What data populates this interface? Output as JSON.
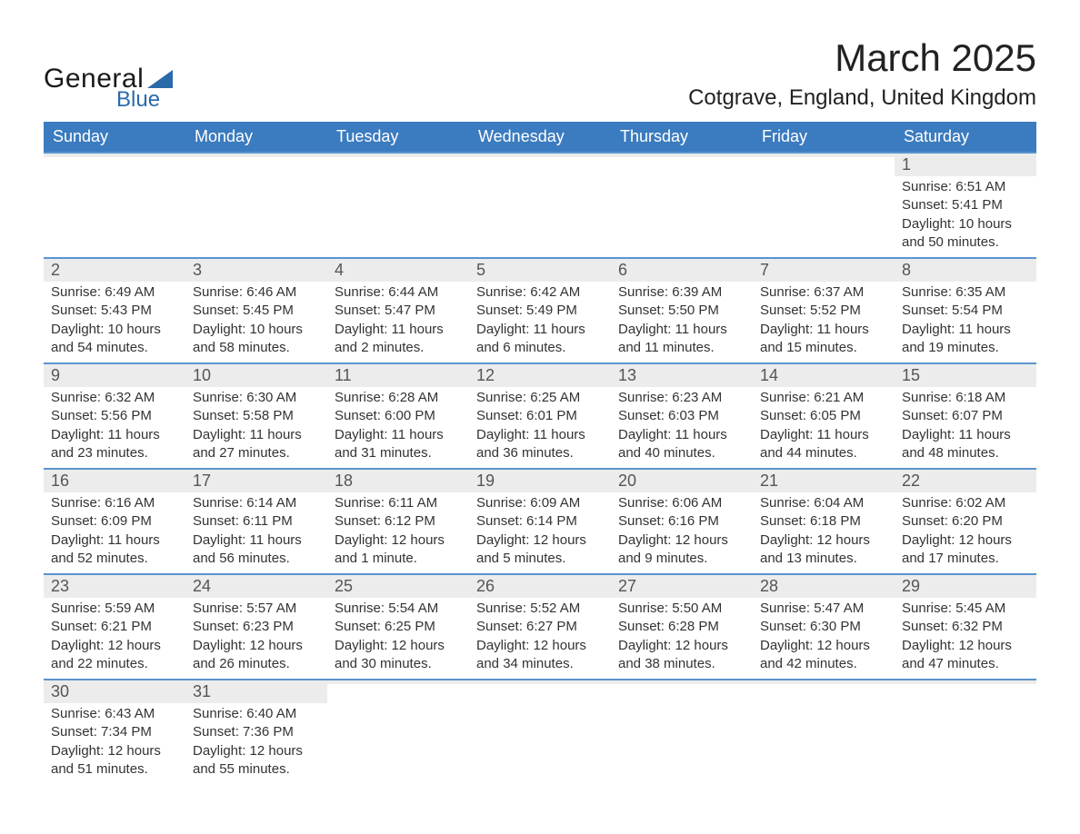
{
  "brand": {
    "top": "General",
    "bottom": "Blue"
  },
  "header": {
    "month_title": "March 2025",
    "location": "Cotgrave, England, United Kingdom"
  },
  "colors": {
    "header_blue": "#3b7bbf",
    "border_blue": "#5a94cf",
    "day_bg": "#ececec",
    "text": "#333333",
    "logo_dark": "#1a1a1a",
    "logo_blue": "#2b6aa8"
  },
  "weekdays": [
    "Sunday",
    "Monday",
    "Tuesday",
    "Wednesday",
    "Thursday",
    "Friday",
    "Saturday"
  ],
  "days": {
    "1": {
      "sunrise": "6:51 AM",
      "sunset": "5:41 PM",
      "daylight": "10 hours and 50 minutes."
    },
    "2": {
      "sunrise": "6:49 AM",
      "sunset": "5:43 PM",
      "daylight": "10 hours and 54 minutes."
    },
    "3": {
      "sunrise": "6:46 AM",
      "sunset": "5:45 PM",
      "daylight": "10 hours and 58 minutes."
    },
    "4": {
      "sunrise": "6:44 AM",
      "sunset": "5:47 PM",
      "daylight": "11 hours and 2 minutes."
    },
    "5": {
      "sunrise": "6:42 AM",
      "sunset": "5:49 PM",
      "daylight": "11 hours and 6 minutes."
    },
    "6": {
      "sunrise": "6:39 AM",
      "sunset": "5:50 PM",
      "daylight": "11 hours and 11 minutes."
    },
    "7": {
      "sunrise": "6:37 AM",
      "sunset": "5:52 PM",
      "daylight": "11 hours and 15 minutes."
    },
    "8": {
      "sunrise": "6:35 AM",
      "sunset": "5:54 PM",
      "daylight": "11 hours and 19 minutes."
    },
    "9": {
      "sunrise": "6:32 AM",
      "sunset": "5:56 PM",
      "daylight": "11 hours and 23 minutes."
    },
    "10": {
      "sunrise": "6:30 AM",
      "sunset": "5:58 PM",
      "daylight": "11 hours and 27 minutes."
    },
    "11": {
      "sunrise": "6:28 AM",
      "sunset": "6:00 PM",
      "daylight": "11 hours and 31 minutes."
    },
    "12": {
      "sunrise": "6:25 AM",
      "sunset": "6:01 PM",
      "daylight": "11 hours and 36 minutes."
    },
    "13": {
      "sunrise": "6:23 AM",
      "sunset": "6:03 PM",
      "daylight": "11 hours and 40 minutes."
    },
    "14": {
      "sunrise": "6:21 AM",
      "sunset": "6:05 PM",
      "daylight": "11 hours and 44 minutes."
    },
    "15": {
      "sunrise": "6:18 AM",
      "sunset": "6:07 PM",
      "daylight": "11 hours and 48 minutes."
    },
    "16": {
      "sunrise": "6:16 AM",
      "sunset": "6:09 PM",
      "daylight": "11 hours and 52 minutes."
    },
    "17": {
      "sunrise": "6:14 AM",
      "sunset": "6:11 PM",
      "daylight": "11 hours and 56 minutes."
    },
    "18": {
      "sunrise": "6:11 AM",
      "sunset": "6:12 PM",
      "daylight": "12 hours and 1 minute."
    },
    "19": {
      "sunrise": "6:09 AM",
      "sunset": "6:14 PM",
      "daylight": "12 hours and 5 minutes."
    },
    "20": {
      "sunrise": "6:06 AM",
      "sunset": "6:16 PM",
      "daylight": "12 hours and 9 minutes."
    },
    "21": {
      "sunrise": "6:04 AM",
      "sunset": "6:18 PM",
      "daylight": "12 hours and 13 minutes."
    },
    "22": {
      "sunrise": "6:02 AM",
      "sunset": "6:20 PM",
      "daylight": "12 hours and 17 minutes."
    },
    "23": {
      "sunrise": "5:59 AM",
      "sunset": "6:21 PM",
      "daylight": "12 hours and 22 minutes."
    },
    "24": {
      "sunrise": "5:57 AM",
      "sunset": "6:23 PM",
      "daylight": "12 hours and 26 minutes."
    },
    "25": {
      "sunrise": "5:54 AM",
      "sunset": "6:25 PM",
      "daylight": "12 hours and 30 minutes."
    },
    "26": {
      "sunrise": "5:52 AM",
      "sunset": "6:27 PM",
      "daylight": "12 hours and 34 minutes."
    },
    "27": {
      "sunrise": "5:50 AM",
      "sunset": "6:28 PM",
      "daylight": "12 hours and 38 minutes."
    },
    "28": {
      "sunrise": "5:47 AM",
      "sunset": "6:30 PM",
      "daylight": "12 hours and 42 minutes."
    },
    "29": {
      "sunrise": "5:45 AM",
      "sunset": "6:32 PM",
      "daylight": "12 hours and 47 minutes."
    },
    "30": {
      "sunrise": "6:43 AM",
      "sunset": "7:34 PM",
      "daylight": "12 hours and 51 minutes."
    },
    "31": {
      "sunrise": "6:40 AM",
      "sunset": "7:36 PM",
      "daylight": "12 hours and 55 minutes."
    }
  },
  "labels": {
    "sunrise": "Sunrise: ",
    "sunset": "Sunset: ",
    "daylight": "Daylight: "
  },
  "layout": {
    "first_weekday_index": 6,
    "num_days": 31
  }
}
